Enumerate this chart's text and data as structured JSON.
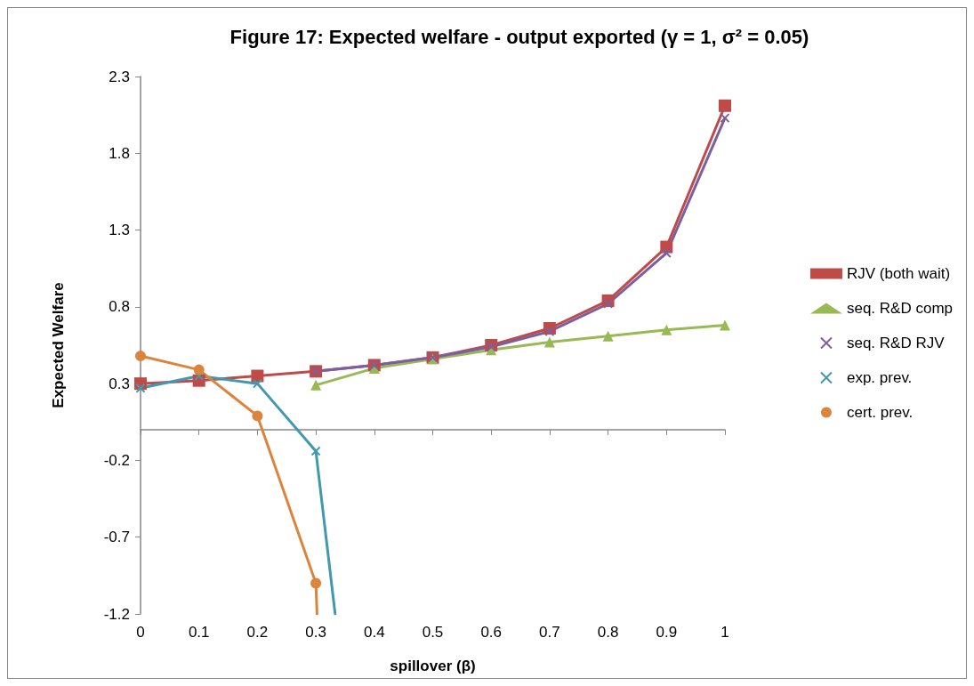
{
  "chart_data": {
    "type": "line",
    "title": "Figure 17: Expected welfare - output exported (γ = 1, σ² = 0.05)",
    "xlabel": "spillover (β)",
    "ylabel": "Expected Welfare",
    "x": [
      0,
      0.1,
      0.2,
      0.3,
      0.4,
      0.5,
      0.6,
      0.7,
      0.8,
      0.9,
      1
    ],
    "series": [
      {
        "name": "RJV (both wait)",
        "color": "#be4b48",
        "marker": "square",
        "values": [
          0.3,
          0.32,
          0.35,
          0.38,
          0.42,
          0.47,
          0.55,
          0.66,
          0.84,
          1.19,
          2.11
        ]
      },
      {
        "name": "seq. R&D comp",
        "color": "#98b954",
        "marker": "triangle",
        "values": [
          null,
          null,
          null,
          0.29,
          0.4,
          0.46,
          0.52,
          0.57,
          0.61,
          0.65,
          0.68
        ]
      },
      {
        "name": "seq. R&D RJV",
        "color": "#7d5fa0",
        "marker": "cross",
        "values": [
          null,
          null,
          null,
          0.38,
          0.42,
          0.47,
          0.54,
          0.64,
          0.82,
          1.15,
          2.03
        ]
      },
      {
        "name": "exp. prev.",
        "color": "#4198af",
        "marker": "cross",
        "x": [
          0,
          0.1,
          0.2,
          0.3,
          0.333
        ],
        "values": [
          0.27,
          0.35,
          0.3,
          -0.14,
          -1.2
        ]
      },
      {
        "name": "cert. prev.",
        "color": "#db843d",
        "marker": "circle",
        "x": [
          0,
          0.1,
          0.2,
          0.3,
          0.302
        ],
        "values": [
          0.48,
          0.39,
          0.09,
          -1.0,
          -1.2
        ]
      }
    ],
    "xlim": [
      0,
      1
    ],
    "xticks": [
      0,
      0.1,
      0.2,
      0.3,
      0.4,
      0.5,
      0.6,
      0.7,
      0.8,
      0.9,
      1
    ],
    "ylim": [
      -1.2,
      2.3
    ],
    "yticks": [
      -1.2,
      -0.7,
      -0.2,
      0.3,
      0.8,
      1.3,
      1.8,
      2.3
    ],
    "grid": false,
    "legend": "right",
    "line_style": "solid"
  }
}
